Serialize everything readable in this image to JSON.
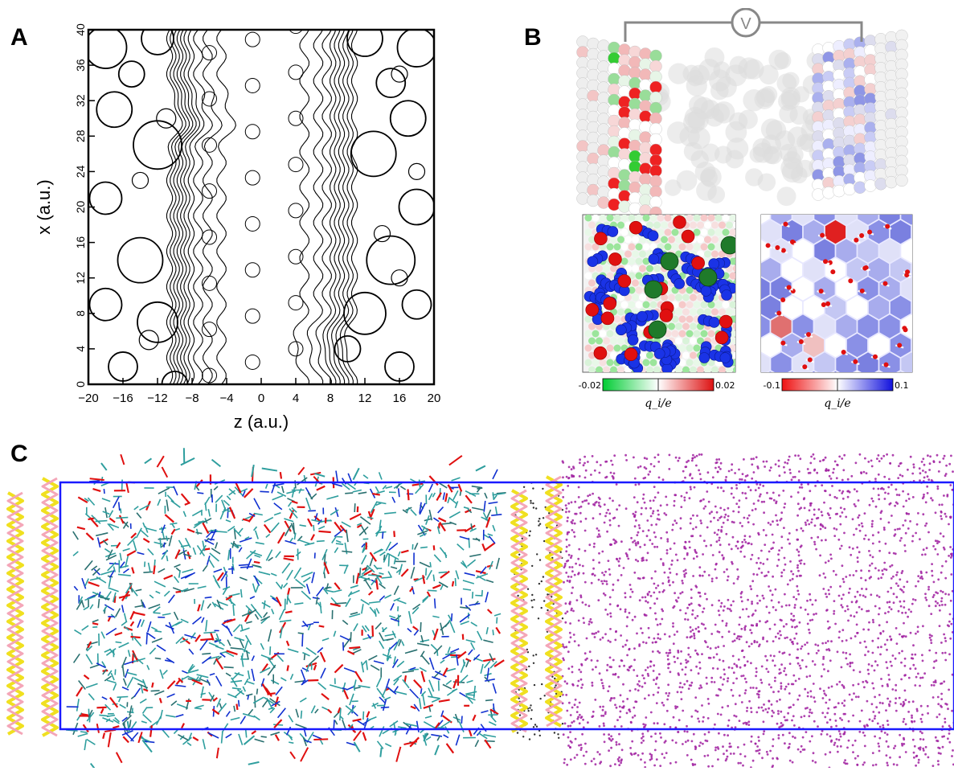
{
  "panels": {
    "a": {
      "label": "A",
      "x_axis_label": "z (a.u.)",
      "y_axis_label": "x (a.u.)",
      "x_ticks": [
        "−20",
        "−16",
        "−12",
        "−8",
        "−4",
        "0",
        "4",
        "8",
        "12",
        "16",
        "20"
      ],
      "y_ticks": [
        "0",
        "4",
        "8",
        "12",
        "16",
        "20",
        "24",
        "28",
        "32",
        "36",
        "40"
      ]
    },
    "b": {
      "label": "B",
      "voltmeter_symbol": "V",
      "colorbar_left": {
        "min": "-0.02",
        "max": "0.02",
        "unit": "q_i/e",
        "colors": [
          "#00cc33",
          "#ffffff",
          "#dd1111"
        ]
      },
      "colorbar_right": {
        "min": "-0.1",
        "max": "0.1",
        "unit": "q_i/e",
        "colors": [
          "#ee1111",
          "#ffffff",
          "#1111dd"
        ]
      }
    },
    "c": {
      "label": "C",
      "colors": {
        "box": "#1a1aff",
        "electrode_gold": "#f0e020",
        "electrode_pink": "#f4a6b8",
        "organic_teal": "#2e9e9e",
        "oxygen_red": "#e01010",
        "nitrogen_blue": "#1030d0",
        "solvent_purple": "#a020a0"
      }
    }
  }
}
